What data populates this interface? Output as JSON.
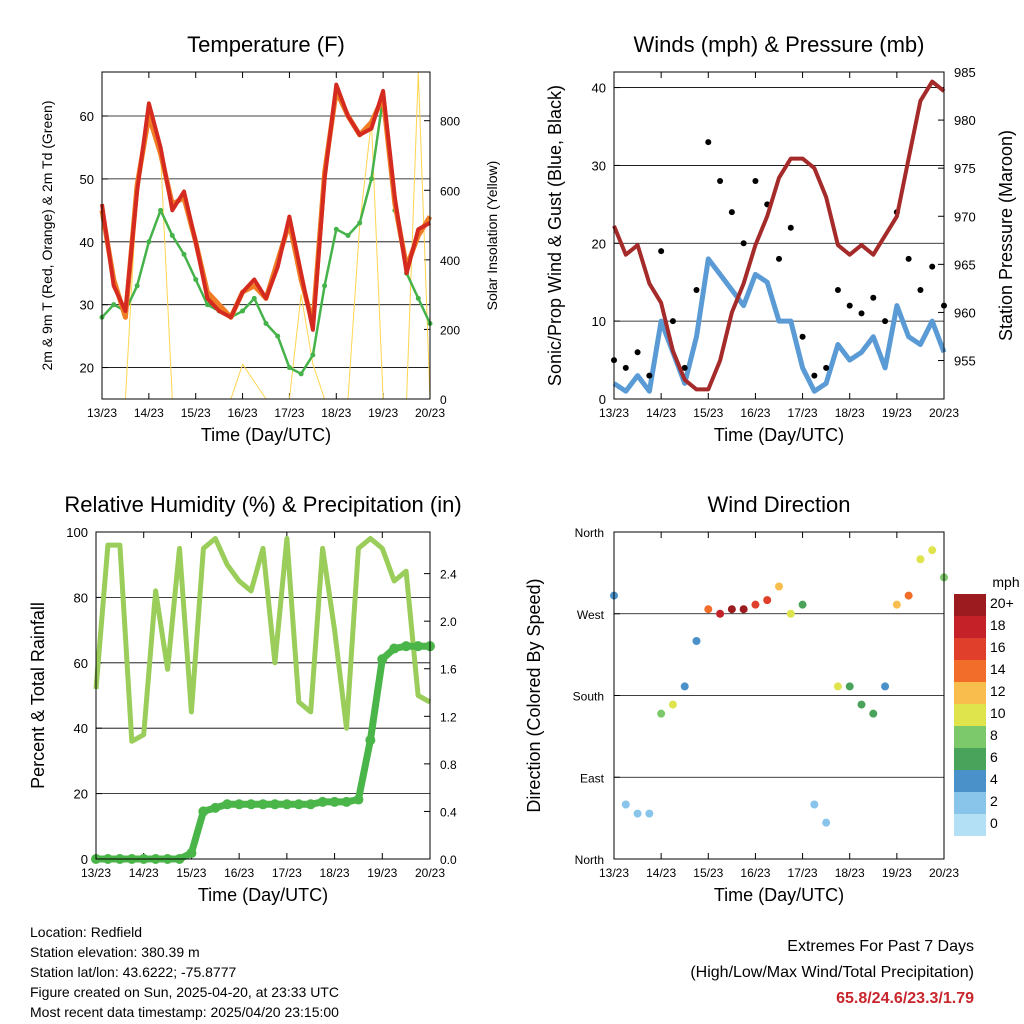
{
  "x_ticks": [
    "13/23",
    "14/23",
    "15/23",
    "16/23",
    "17/23",
    "18/23",
    "19/23",
    "20/23"
  ],
  "charts": {
    "temperature": {
      "title": "Temperature (F)",
      "xlabel": "Time (Day/UTC)",
      "ylabel": "2m & 9m T (Red, Orange) & 2m Td (Green)",
      "y2label": "Solar Insolation (Yellow)",
      "y_ticks": [
        "20",
        "30",
        "40",
        "50",
        "60"
      ],
      "y2_ticks": [
        "0",
        "200",
        "400",
        "600",
        "800"
      ]
    },
    "winds": {
      "title": "Winds (mph) & Pressure (mb)",
      "xlabel": "Time (Day/UTC)",
      "ylabel": "Sonic/Prop Wind & Gust (Blue, Black)",
      "y2label": "Station Pressure (Maroon)",
      "y_ticks": [
        "0",
        "10",
        "20",
        "30",
        "40"
      ],
      "y2_ticks": [
        "955",
        "960",
        "965",
        "970",
        "975",
        "980",
        "985"
      ]
    },
    "humidity": {
      "title": "Relative Humidity (%) & Precipitation (in)",
      "xlabel": "Time (Day/UTC)",
      "ylabel": "Percent & Total Rainfall",
      "y_ticks": [
        "0",
        "20",
        "40",
        "60",
        "80",
        "100"
      ],
      "y2_ticks": [
        "0.0",
        "0.4",
        "0.8",
        "1.2",
        "1.6",
        "2.0",
        "2.4"
      ]
    },
    "direction": {
      "title": "Wind Direction",
      "xlabel": "Time (Day/UTC)",
      "ylabel": "Direction (Colored By Speed)",
      "y_ticks": [
        "North",
        "East",
        "South",
        "West",
        "North"
      ],
      "legend_title": "mph",
      "legend_labels": [
        "20+",
        "18",
        "16",
        "14",
        "12",
        "10",
        "8",
        "6",
        "4",
        "2",
        "0"
      ]
    }
  },
  "chart_data": [
    {
      "type": "line",
      "title": "Temperature (F)",
      "xlabel": "Time (Day/UTC)",
      "ylabel": "2m & 9m T (Red, Orange) & 2m Td (Green)",
      "y2label": "Solar Insolation (Yellow)",
      "x": [
        13.0,
        13.25,
        13.5,
        13.75,
        14.0,
        14.25,
        14.5,
        14.75,
        15.0,
        15.25,
        15.5,
        15.75,
        16.0,
        16.25,
        16.5,
        16.75,
        17.0,
        17.25,
        17.5,
        17.75,
        18.0,
        18.25,
        18.5,
        18.75,
        19.0,
        19.25,
        19.5,
        19.75,
        20.0
      ],
      "ylim": [
        15,
        67
      ],
      "y2lim": [
        0,
        940
      ],
      "series": [
        {
          "values": [
            46,
            33,
            29,
            48,
            62,
            55,
            45,
            48,
            40,
            31,
            29,
            28,
            32,
            34,
            31,
            36,
            44,
            35,
            26,
            50,
            65,
            60,
            57,
            58,
            64,
            47,
            35,
            42,
            43
          ],
          "color": "#d42a20"
        },
        {
          "values": [
            45,
            34,
            28,
            49,
            60,
            54,
            46,
            47,
            40,
            32,
            30,
            28,
            32,
            33,
            31,
            37,
            43,
            34,
            27,
            51,
            64,
            60,
            57,
            59,
            63,
            46,
            36,
            41,
            44
          ],
          "color": "#f07c25"
        },
        {
          "values": [
            28,
            30,
            29,
            33,
            40,
            45,
            41,
            38,
            34,
            30,
            29,
            28,
            29,
            31,
            27,
            25,
            20,
            19,
            22,
            33,
            42,
            41,
            43,
            50,
            63,
            45,
            35,
            31,
            27
          ],
          "color": "#45b24a"
        },
        {
          "values": [
            0,
            0,
            0,
            600,
            820,
            700,
            0,
            0,
            0,
            0,
            0,
            0,
            100,
            50,
            0,
            0,
            0,
            300,
            100,
            0,
            0,
            0,
            500,
            800,
            0,
            0,
            0,
            940,
            0
          ],
          "color": "#ffd54f"
        }
      ]
    },
    {
      "type": "line",
      "title": "Winds (mph) & Pressure (mb)",
      "xlabel": "Time (Day/UTC)",
      "ylabel": "Sonic/Prop Wind & Gust (Blue, Black)",
      "y2label": "Station Pressure (Maroon)",
      "x": [
        13.0,
        13.25,
        13.5,
        13.75,
        14.0,
        14.25,
        14.5,
        14.75,
        15.0,
        15.25,
        15.5,
        15.75,
        16.0,
        16.25,
        16.5,
        16.75,
        17.0,
        17.25,
        17.5,
        17.75,
        18.0,
        18.25,
        18.5,
        18.75,
        19.0,
        19.25,
        19.5,
        19.75,
        20.0
      ],
      "ylim": [
        0,
        42
      ],
      "y2lim": [
        951,
        985
      ],
      "series": [
        {
          "values": [
            2,
            1,
            3,
            1,
            10,
            6,
            2,
            8,
            18,
            16,
            14,
            12,
            16,
            15,
            10,
            10,
            4,
            1,
            2,
            7,
            5,
            6,
            8,
            4,
            12,
            8,
            7,
            10,
            6
          ],
          "color": "#5b9bd5"
        },
        {
          "values": [
            5,
            4,
            6,
            3,
            19,
            10,
            4,
            14,
            33,
            28,
            24,
            20,
            28,
            25,
            18,
            22,
            8,
            3,
            4,
            14,
            12,
            11,
            13,
            10,
            24,
            18,
            14,
            17,
            12
          ],
          "color": "#000000"
        },
        {
          "values": [
            969,
            966,
            967,
            963,
            961,
            956,
            953,
            952,
            952,
            955,
            960,
            963,
            967,
            970,
            974,
            976,
            976,
            975,
            972,
            967,
            966,
            967,
            966,
            968,
            970,
            976,
            982,
            984,
            983
          ],
          "color": "#a52a2a"
        }
      ]
    },
    {
      "type": "line",
      "title": "Relative Humidity (%) & Precipitation (in)",
      "xlabel": "Time (Day/UTC)",
      "ylabel": "Percent & Total Rainfall",
      "x": [
        13.0,
        13.25,
        13.5,
        13.75,
        14.0,
        14.25,
        14.5,
        14.75,
        15.0,
        15.25,
        15.5,
        15.75,
        16.0,
        16.25,
        16.5,
        16.75,
        17.0,
        17.25,
        17.5,
        17.75,
        18.0,
        18.25,
        18.5,
        18.75,
        19.0,
        19.25,
        19.5,
        19.75,
        20.0
      ],
      "ylim": [
        0,
        100
      ],
      "y2lim": [
        0,
        2.75
      ],
      "series": [
        {
          "values": [
            52,
            96,
            96,
            36,
            38,
            82,
            58,
            95,
            45,
            95,
            98,
            90,
            85,
            82,
            95,
            60,
            98,
            48,
            45,
            95,
            70,
            40,
            95,
            98,
            95,
            85,
            88,
            50,
            48
          ],
          "color": "#9acd5a"
        },
        {
          "values": [
            0,
            0,
            0,
            0,
            0,
            0,
            0,
            0,
            0.05,
            0.4,
            0.43,
            0.46,
            0.46,
            0.46,
            0.46,
            0.46,
            0.46,
            0.46,
            0.46,
            0.48,
            0.48,
            0.48,
            0.5,
            1.0,
            1.68,
            1.77,
            1.79,
            1.79,
            1.79
          ],
          "color": "#4ab548"
        }
      ]
    },
    {
      "type": "scatter",
      "title": "Wind Direction",
      "xlabel": "Time (Day/UTC)",
      "ylabel": "Direction (Colored By Speed)",
      "x": [
        13.0,
        13.25,
        13.5,
        13.75,
        14.0,
        14.25,
        14.5,
        14.75,
        15.0,
        15.25,
        15.5,
        15.75,
        16.0,
        16.25,
        16.5,
        16.75,
        17.0,
        17.25,
        17.5,
        17.75,
        18.0,
        18.25,
        18.5,
        18.75,
        19.0,
        19.25,
        19.5,
        19.75,
        20.0
      ],
      "ylim": [
        0,
        360
      ],
      "series": [
        {
          "name": "direction",
          "values": [
            290,
            60,
            50,
            50,
            160,
            170,
            190,
            240,
            275,
            270,
            275,
            275,
            280,
            285,
            300,
            270,
            280,
            60,
            40,
            190,
            190,
            170,
            160,
            190,
            280,
            290,
            330,
            340,
            310
          ]
        },
        {
          "name": "speed",
          "values": [
            3,
            1,
            2,
            2,
            8,
            10,
            3,
            4,
            14,
            18,
            20,
            19,
            16,
            15,
            12,
            10,
            6,
            1,
            2,
            9,
            6,
            6,
            5,
            4,
            12,
            14,
            10,
            9,
            8
          ]
        }
      ]
    }
  ],
  "footer": {
    "location": "Location: Redfield",
    "elevation": "Station elevation: 380.39 m",
    "latlon": "Station lat/lon: 43.6222; -75.8777",
    "created": "Figure created on Sun, 2025-04-20, at 23:33 UTC",
    "recent": "Most recent data timestamp: 2025/04/20 23:15:00",
    "extremes_title": "Extremes For Past 7 Days",
    "extremes_sub": "(High/Low/Max Wind/Total Precipitation)",
    "extremes_values": "65.8/24.6/23.3/1.79"
  }
}
